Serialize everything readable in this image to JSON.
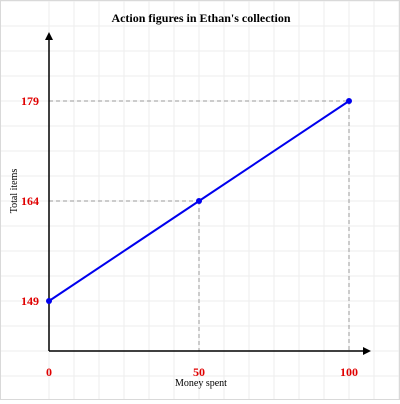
{
  "chart_data": {
    "type": "line",
    "title": "Action figures in Ethan's collection",
    "xlabel": "Money spent",
    "ylabel": "Total items",
    "x": [
      0,
      50,
      100
    ],
    "y": [
      149,
      164,
      179
    ],
    "xticks": [
      "0",
      "50",
      "100"
    ],
    "yticks": [
      "149",
      "164",
      "179"
    ],
    "xlim": [
      0,
      105
    ],
    "ylim": [
      142,
      197
    ],
    "grid": true,
    "colors": {
      "line": "#0000ee",
      "tick_labels": "#e00000",
      "guides": "#999999",
      "grid": "#eeeeee"
    }
  }
}
